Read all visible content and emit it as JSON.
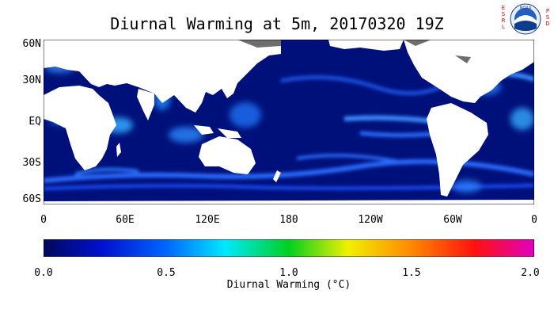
{
  "title": "Diurnal Warming at 5m, 20170320 19Z",
  "logo": {
    "text": "NOAA",
    "left_letters": [
      "E",
      "S",
      "R",
      "L"
    ],
    "right_letters": [
      "P",
      "S",
      "D"
    ]
  },
  "map": {
    "y_ticks": [
      "60N",
      "30N",
      "EQ",
      "30S",
      "60S"
    ],
    "x_ticks": [
      "0",
      "60E",
      "120E",
      "180",
      "120W",
      "60W",
      "0"
    ],
    "ocean_color": "#00107a",
    "land_color": "#ffffff",
    "ice_color": "#6e6e6e"
  },
  "colorbar": {
    "ticks": [
      "0.0",
      "0.5",
      "1.0",
      "1.5",
      "2.0"
    ],
    "label": "Diurnal Warming (°C)",
    "range": [
      0.0,
      2.0
    ]
  }
}
